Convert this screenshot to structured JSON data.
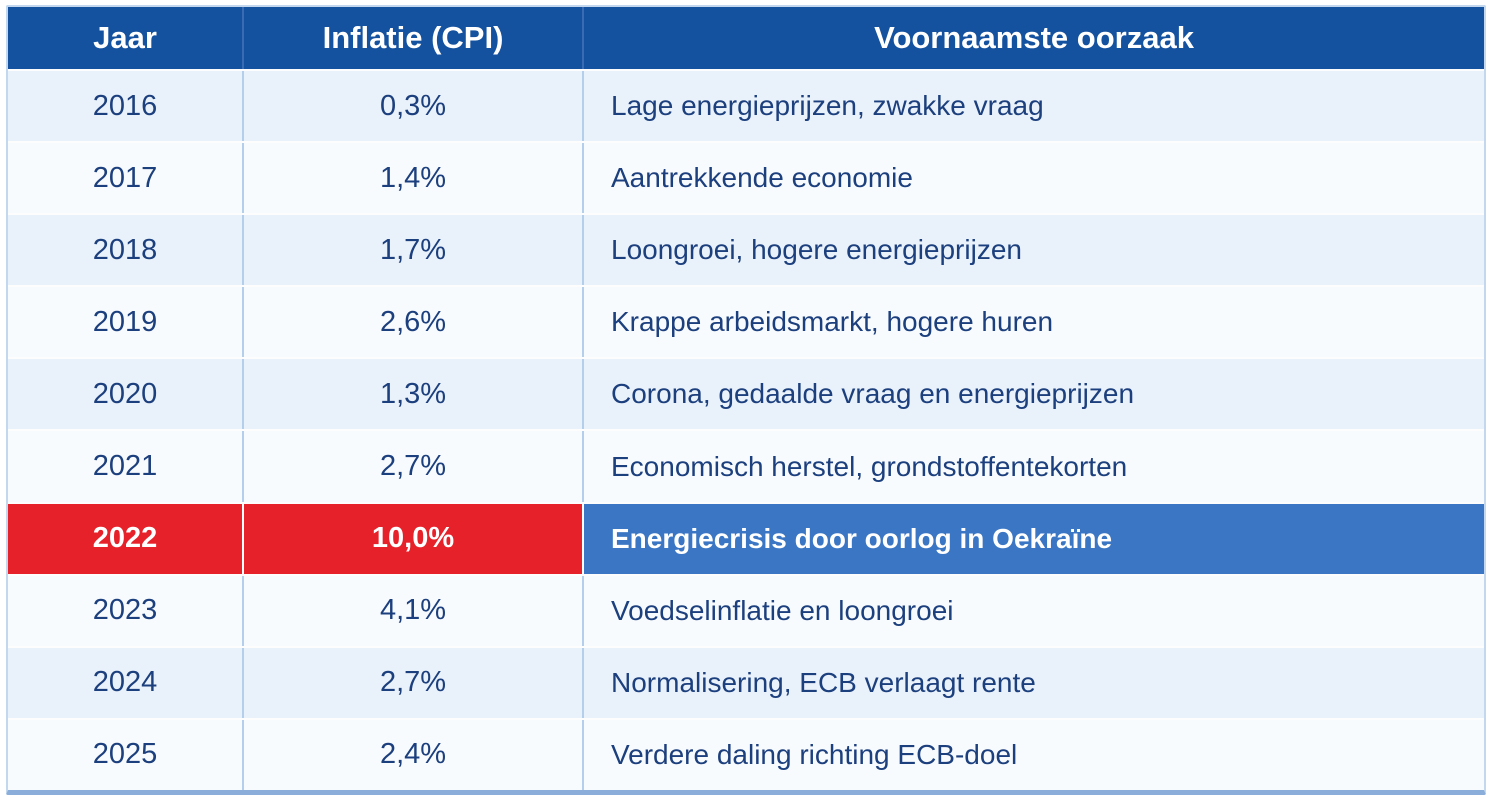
{
  "header": {
    "jaar": "Jaar",
    "inflatie": "Inflatie (CPI)",
    "oorzaak": "Voornaamste oorzaak"
  },
  "rows": [
    {
      "year": "2016",
      "cpi": "0,3%",
      "cause": "Lage energieprijzen, zwakke vraag"
    },
    {
      "year": "2017",
      "cpi": "1,4%",
      "cause": "Aantrekkende economie"
    },
    {
      "year": "2018",
      "cpi": "1,7%",
      "cause": "Loongroei, hogere energieprijzen"
    },
    {
      "year": "2019",
      "cpi": "2,6%",
      "cause": "Krappe arbeidsmarkt, hogere huren"
    },
    {
      "year": "2020",
      "cpi": "1,3%",
      "cause": "Corona, gedaalde vraag en energieprijzen"
    },
    {
      "year": "2021",
      "cpi": "2,7%",
      "cause": "Economisch herstel, grondstoffentekorten"
    },
    {
      "year": "2022",
      "cpi": "10,0%",
      "cause": "Energiecrisis door oorlog in Oekraïne",
      "highlight": true
    },
    {
      "year": "2023",
      "cpi": "4,1%",
      "cause": "Voedselinflatie en loongroei"
    },
    {
      "year": "2024",
      "cpi": "2,7%",
      "cause": "Normalisering, ECB verlaagt rente"
    },
    {
      "year": "2025",
      "cpi": "2,4%",
      "cause": "Verdere daling richting ECB-doel"
    }
  ],
  "colors": {
    "header_bg": "#14519e",
    "header_separator": "#3a6cb3",
    "text_navy": "#1c3f7d",
    "row_even_bg": "#e9f1fa",
    "row_odd_bg": "#f8fbfe",
    "highlight_red": "#e62129",
    "highlight_blue": "#3a76c4",
    "column_separator": "#b4cfec",
    "bottom_accent": "#8aaed9",
    "outer_border": "#c3d8ef"
  },
  "chart_data": {
    "type": "table",
    "columns": [
      "Jaar",
      "Inflatie (CPI)",
      "Voornaamste oorzaak"
    ],
    "rows": [
      [
        "2016",
        "0,3%",
        "Lage energieprijzen, zwakke vraag"
      ],
      [
        "2017",
        "1,4%",
        "Aantrekkende economie"
      ],
      [
        "2018",
        "1,7%",
        "Loongroei, hogere energieprijzen"
      ],
      [
        "2019",
        "2,6%",
        "Krappe arbeidsmarkt, hogere huren"
      ],
      [
        "2020",
        "1,3%",
        "Corona, gedaalde vraag en energieprijzen"
      ],
      [
        "2021",
        "2,7%",
        "Economisch herstel, grondstoffentekorten"
      ],
      [
        "2022",
        "10,0%",
        "Energiecrisis door oorlog in Oekraïne"
      ],
      [
        "2023",
        "4,1%",
        "Voedselinflatie en loongroei"
      ],
      [
        "2024",
        "2,7%",
        "Normalisering, ECB verlaagt rente"
      ],
      [
        "2025",
        "2,4%",
        "Verdere daling richting ECB-doel"
      ]
    ],
    "years_numeric": [
      2016,
      2017,
      2018,
      2019,
      2020,
      2021,
      2022,
      2023,
      2024,
      2025
    ],
    "cpi_percent_numeric": [
      0.3,
      1.4,
      1.7,
      2.6,
      1.3,
      2.7,
      10.0,
      4.1,
      2.7,
      2.4
    ],
    "highlighted_year": 2022
  }
}
